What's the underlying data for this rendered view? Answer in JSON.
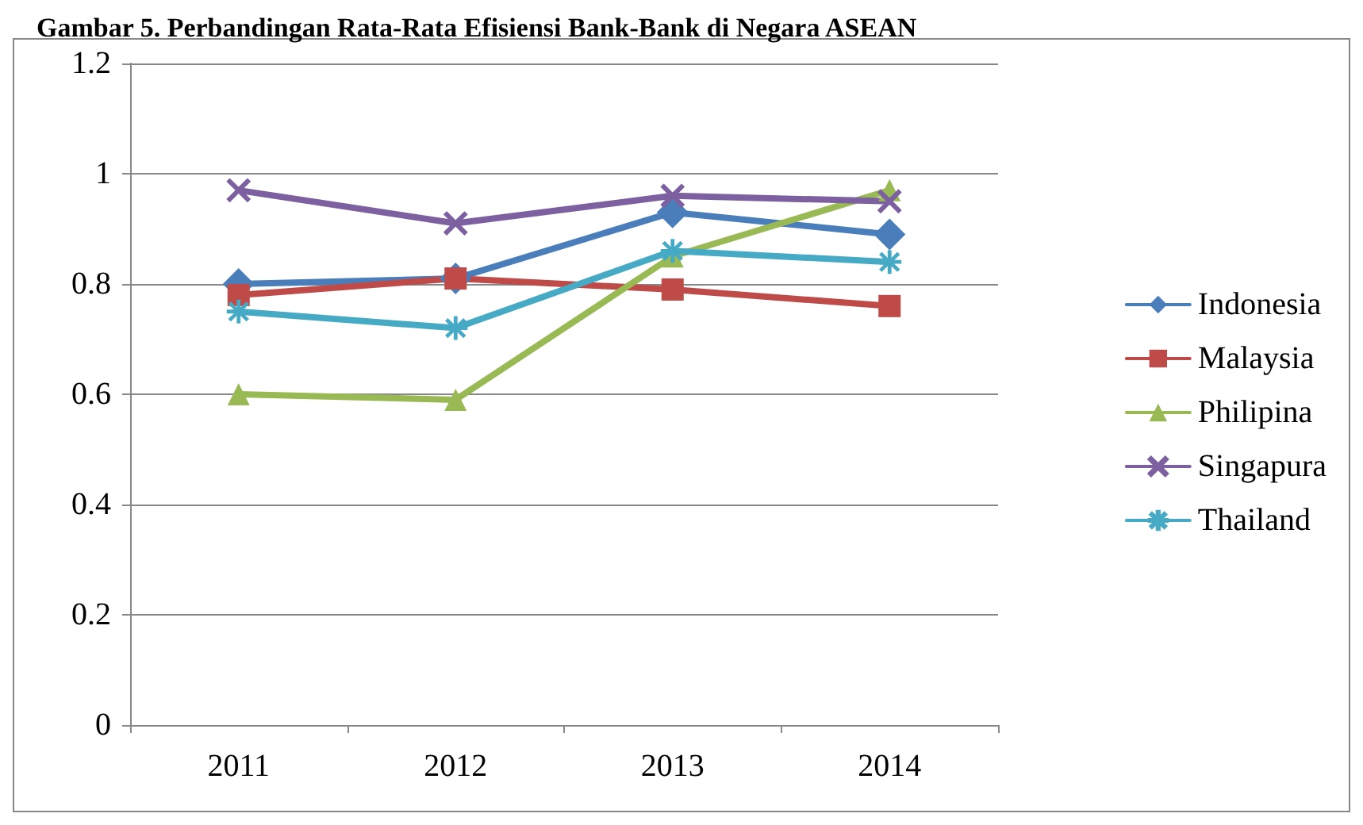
{
  "chart_data": {
    "type": "line",
    "title": "Gambar 5. Perbandingan Rata-Rata Efisiensi Bank-Bank di Negara ASEAN",
    "categories": [
      "2011",
      "2012",
      "2013",
      "2014"
    ],
    "series": [
      {
        "name": "Indonesia",
        "color": "#4a7ebb",
        "marker": "diamond",
        "values": [
          0.8,
          0.81,
          0.93,
          0.89
        ]
      },
      {
        "name": "Malaysia",
        "color": "#be4b48",
        "marker": "square",
        "values": [
          0.78,
          0.81,
          0.79,
          0.76
        ]
      },
      {
        "name": "Philipina",
        "color": "#98b954",
        "marker": "triangle",
        "values": [
          0.6,
          0.59,
          0.85,
          0.97
        ]
      },
      {
        "name": "Singapura",
        "color": "#7d60a0",
        "marker": "cross",
        "values": [
          0.97,
          0.91,
          0.96,
          0.95
        ]
      },
      {
        "name": "Thailand",
        "color": "#46aac5",
        "marker": "star",
        "values": [
          0.75,
          0.72,
          0.86,
          0.84
        ]
      }
    ],
    "ylim": [
      0,
      1.2
    ],
    "yticks": [
      0,
      0.2,
      0.4,
      0.6,
      0.8,
      1,
      1.2
    ],
    "grid": "y",
    "legend": "right",
    "line_style": "solid"
  }
}
